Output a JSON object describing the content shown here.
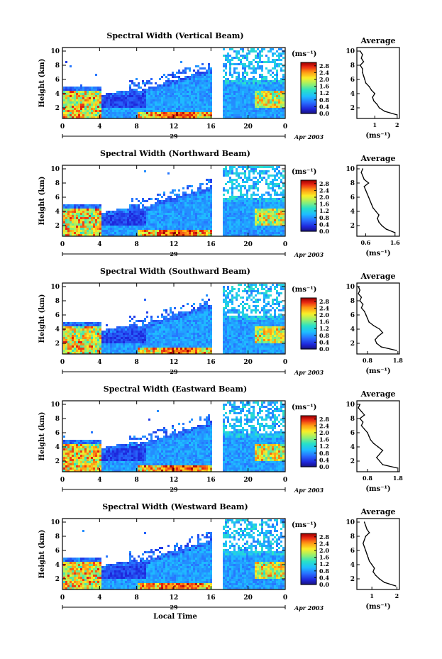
{
  "chart_data": [
    {
      "type": "heatmap",
      "title": "Spectral Width (Vertical Beam)",
      "ylabel": "Height (km)",
      "y_ticks": [
        "2",
        "4",
        "6",
        "8",
        "10"
      ],
      "ylim": [
        0.5,
        10.5
      ],
      "x_ticks": [
        "0",
        "4",
        "8",
        "12",
        "16",
        "20",
        "0"
      ],
      "xlim": [
        0,
        24
      ],
      "date_day": "29",
      "date_month_year": "Apr 2003",
      "colorbar_unit": "(ms⁻¹)",
      "colorbar_ticks": [
        "0.0",
        "0.4",
        "0.8",
        "1.2",
        "1.6",
        "2.0",
        "2.4",
        "2.8"
      ],
      "colorbar_range": [
        0,
        3.0
      ],
      "profile": {
        "title": "Average",
        "xlabel": "(ms⁻¹)",
        "x_ticks": [
          "1",
          "2"
        ],
        "x_tick_values": [
          1,
          2
        ],
        "xlim": [
          0.2,
          2.1
        ],
        "heights": [
          1,
          1.5,
          2,
          2.5,
          3,
          3.5,
          4,
          4.5,
          5,
          5.5,
          6,
          6.5,
          7,
          7.5,
          8,
          8.5,
          9,
          9.5,
          10
        ],
        "values": [
          2.0,
          1.45,
          1.2,
          1.1,
          0.95,
          0.9,
          1.0,
          0.85,
          0.75,
          0.6,
          0.55,
          0.5,
          0.45,
          0.45,
          0.35,
          0.5,
          0.4,
          0.45,
          0.35
        ]
      }
    },
    {
      "type": "heatmap",
      "title": "Spectral Width (Northward Beam)",
      "ylabel": "Height (km)",
      "y_ticks": [
        "2",
        "4",
        "6",
        "8",
        "10"
      ],
      "ylim": [
        0.5,
        10.5
      ],
      "x_ticks": [
        "0",
        "4",
        "8",
        "12",
        "16",
        "20",
        "0"
      ],
      "xlim": [
        0,
        24
      ],
      "date_day": "29",
      "date_month_year": "Apr 2003",
      "colorbar_unit": "(ms⁻¹)",
      "colorbar_ticks": [
        "0.0",
        "0.4",
        "0.8",
        "1.2",
        "1.6",
        "2.0",
        "2.4",
        "2.8"
      ],
      "colorbar_range": [
        0,
        3.0
      ],
      "profile": {
        "title": "Average",
        "xlabel": "(ms⁻¹)",
        "x_ticks": [
          "0.6",
          "1.6"
        ],
        "x_tick_values": [
          0.6,
          1.6
        ],
        "xlim": [
          0.3,
          1.75
        ],
        "heights": [
          1,
          1.5,
          2,
          2.5,
          3,
          3.5,
          4,
          4.5,
          5,
          5.5,
          6,
          6.5,
          7,
          7.5,
          8,
          8.5,
          9,
          9.5,
          10
        ],
        "values": [
          1.6,
          1.3,
          1.15,
          1.05,
          1.0,
          1.05,
          0.95,
          0.85,
          0.8,
          0.75,
          0.7,
          0.65,
          0.6,
          0.55,
          0.7,
          0.55,
          0.5,
          0.45,
          0.5
        ]
      }
    },
    {
      "type": "heatmap",
      "title": "Spectral Width (Southward Beam)",
      "ylabel": "Height (km)",
      "y_ticks": [
        "2",
        "4",
        "6",
        "8",
        "10"
      ],
      "ylim": [
        0.5,
        10.5
      ],
      "x_ticks": [
        "0",
        "4",
        "8",
        "12",
        "16",
        "20",
        "0"
      ],
      "xlim": [
        0,
        24
      ],
      "date_day": "29",
      "date_month_year": "Apr 2003",
      "colorbar_unit": "(ms⁻¹)",
      "colorbar_ticks": [
        "0.0",
        "0.4",
        "0.8",
        "1.2",
        "1.6",
        "2.0",
        "2.4",
        "2.8"
      ],
      "colorbar_range": [
        0,
        3.0
      ],
      "profile": {
        "title": "Average",
        "xlabel": "(ms⁻¹)",
        "x_ticks": [
          "0.8",
          "1.8"
        ],
        "x_tick_values": [
          0.8,
          1.8
        ],
        "xlim": [
          0.45,
          1.85
        ],
        "heights": [
          1,
          1.5,
          2,
          2.5,
          3,
          3.5,
          4,
          4.5,
          5,
          5.5,
          6,
          6.5,
          7,
          7.5,
          8,
          8.5,
          9,
          9.5,
          10
        ],
        "values": [
          1.75,
          1.25,
          1.1,
          1.05,
          1.15,
          1.3,
          1.2,
          1.0,
          0.85,
          0.8,
          0.75,
          0.7,
          0.6,
          0.65,
          0.55,
          0.6,
          0.5,
          0.55,
          0.5
        ]
      }
    },
    {
      "type": "heatmap",
      "title": "Spectral Width (Eastward Beam)",
      "ylabel": "Height (km)",
      "y_ticks": [
        "2",
        "4",
        "6",
        "8",
        "10"
      ],
      "ylim": [
        0.5,
        10.5
      ],
      "x_ticks": [
        "0",
        "4",
        "8",
        "12",
        "16",
        "20",
        "0"
      ],
      "xlim": [
        0,
        24
      ],
      "date_day": "29",
      "date_month_year": "Apr 2003",
      "colorbar_unit": "(ms⁻¹)",
      "colorbar_ticks": [
        "0.0",
        "0.4",
        "0.8",
        "1.2",
        "1.6",
        "2.0",
        "2.4",
        "2.8"
      ],
      "colorbar_range": [
        0,
        3.0
      ],
      "profile": {
        "title": "Average",
        "xlabel": "(ms⁻¹)",
        "x_ticks": [
          "0.8",
          "1.8"
        ],
        "x_tick_values": [
          0.8,
          1.8
        ],
        "xlim": [
          0.45,
          1.85
        ],
        "heights": [
          1,
          1.5,
          2,
          2.5,
          3,
          3.5,
          4,
          4.5,
          5,
          5.5,
          6,
          6.5,
          7,
          7.5,
          8,
          8.5,
          9,
          9.5,
          10
        ],
        "values": [
          1.8,
          1.3,
          1.2,
          1.1,
          1.2,
          1.3,
          1.15,
          1.0,
          0.9,
          0.85,
          0.8,
          0.7,
          0.6,
          0.65,
          0.55,
          0.7,
          0.6,
          0.5,
          0.55
        ]
      }
    },
    {
      "type": "heatmap",
      "title": "Spectral Width (Westward Beam)",
      "ylabel": "Height (km)",
      "y_ticks": [
        "2",
        "4",
        "6",
        "8",
        "10"
      ],
      "ylim": [
        0.5,
        10.5
      ],
      "x_ticks": [
        "0",
        "4",
        "8",
        "12",
        "16",
        "20",
        "0"
      ],
      "xlim": [
        0,
        24
      ],
      "date_day": "29",
      "date_month_year": "Apr 2003",
      "xlabel": "Local Time",
      "colorbar_unit": "(ms⁻¹)",
      "colorbar_ticks": [
        "0.0",
        "0.4",
        "0.8",
        "1.2",
        "1.6",
        "2.0",
        "2.4",
        "2.8"
      ],
      "colorbar_range": [
        0,
        3.0
      ],
      "profile": {
        "title": "Average",
        "xlabel": "(ms⁻¹)",
        "x_ticks": [
          "1",
          "2"
        ],
        "x_tick_values": [
          1,
          2
        ],
        "xlim": [
          0.4,
          2.1
        ],
        "heights": [
          1,
          1.5,
          2,
          2.5,
          3,
          3.5,
          4,
          4.5,
          5,
          5.5,
          6,
          6.5,
          7,
          7.5,
          8,
          8.5,
          9,
          9.5,
          10
        ],
        "values": [
          1.95,
          1.5,
          1.3,
          1.15,
          1.05,
          1.1,
          1.0,
          0.9,
          0.85,
          0.8,
          0.75,
          0.7,
          0.65,
          0.7,
          0.75,
          0.9,
          0.8,
          0.75,
          0.7
        ]
      }
    }
  ]
}
